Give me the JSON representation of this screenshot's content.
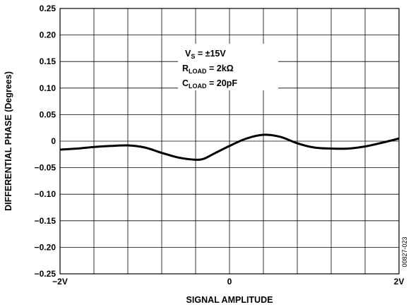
{
  "chart_data": {
    "type": "line",
    "title": "",
    "xlabel": "SIGNAL AMPLITUDE",
    "ylabel": "DIFFERENTIAL PHASE (Degrees)",
    "xlim": [
      -2,
      2
    ],
    "ylim": [
      -0.25,
      0.25
    ],
    "grid": true,
    "x_ticks": [
      {
        "value": -2,
        "label": "−2V"
      },
      {
        "value": 0,
        "label": "0"
      },
      {
        "value": 2,
        "label": "2V"
      }
    ],
    "x_gridlines": [
      -2,
      -1.6,
      -1.2,
      -0.8,
      -0.4,
      0,
      0.4,
      0.8,
      1.2,
      1.6,
      2
    ],
    "y_ticks": [
      {
        "value": 0.25,
        "label": "0.25"
      },
      {
        "value": 0.2,
        "label": "0.20"
      },
      {
        "value": 0.15,
        "label": "0.15"
      },
      {
        "value": 0.1,
        "label": "0.10"
      },
      {
        "value": 0.05,
        "label": "0.05"
      },
      {
        "value": 0,
        "label": "0"
      },
      {
        "value": -0.05,
        "label": "−0.05"
      },
      {
        "value": -0.1,
        "label": "−0.10"
      },
      {
        "value": -0.15,
        "label": "−0.15"
      },
      {
        "value": -0.2,
        "label": "−0.20"
      },
      {
        "value": -0.25,
        "label": "−0.25"
      }
    ],
    "series": [
      {
        "x": [
          -2.0,
          -1.8,
          -1.6,
          -1.4,
          -1.2,
          -1.0,
          -0.8,
          -0.6,
          -0.4,
          -0.3,
          -0.2,
          0.0,
          0.2,
          0.4,
          0.6,
          0.8,
          1.0,
          1.2,
          1.4,
          1.6,
          1.8,
          2.0
        ],
        "values": [
          -0.016,
          -0.014,
          -0.011,
          -0.009,
          -0.008,
          -0.012,
          -0.022,
          -0.031,
          -0.035,
          -0.033,
          -0.025,
          -0.009,
          0.005,
          0.012,
          0.008,
          -0.004,
          -0.012,
          -0.014,
          -0.014,
          -0.01,
          -0.003,
          0.005
        ]
      }
    ],
    "annotation": {
      "lines": [
        {
          "main": "V",
          "sub": "S",
          "rest": " = ±15V"
        },
        {
          "main": "R",
          "sub": "LOAD",
          "rest": " = 2kΩ"
        },
        {
          "main": "C",
          "sub": "LOAD",
          "rest": " = 20pF"
        }
      ]
    },
    "figure_id": "00827-023",
    "colors": {
      "line": "#000000",
      "grid": "#000000",
      "background": "#ffffff"
    }
  }
}
